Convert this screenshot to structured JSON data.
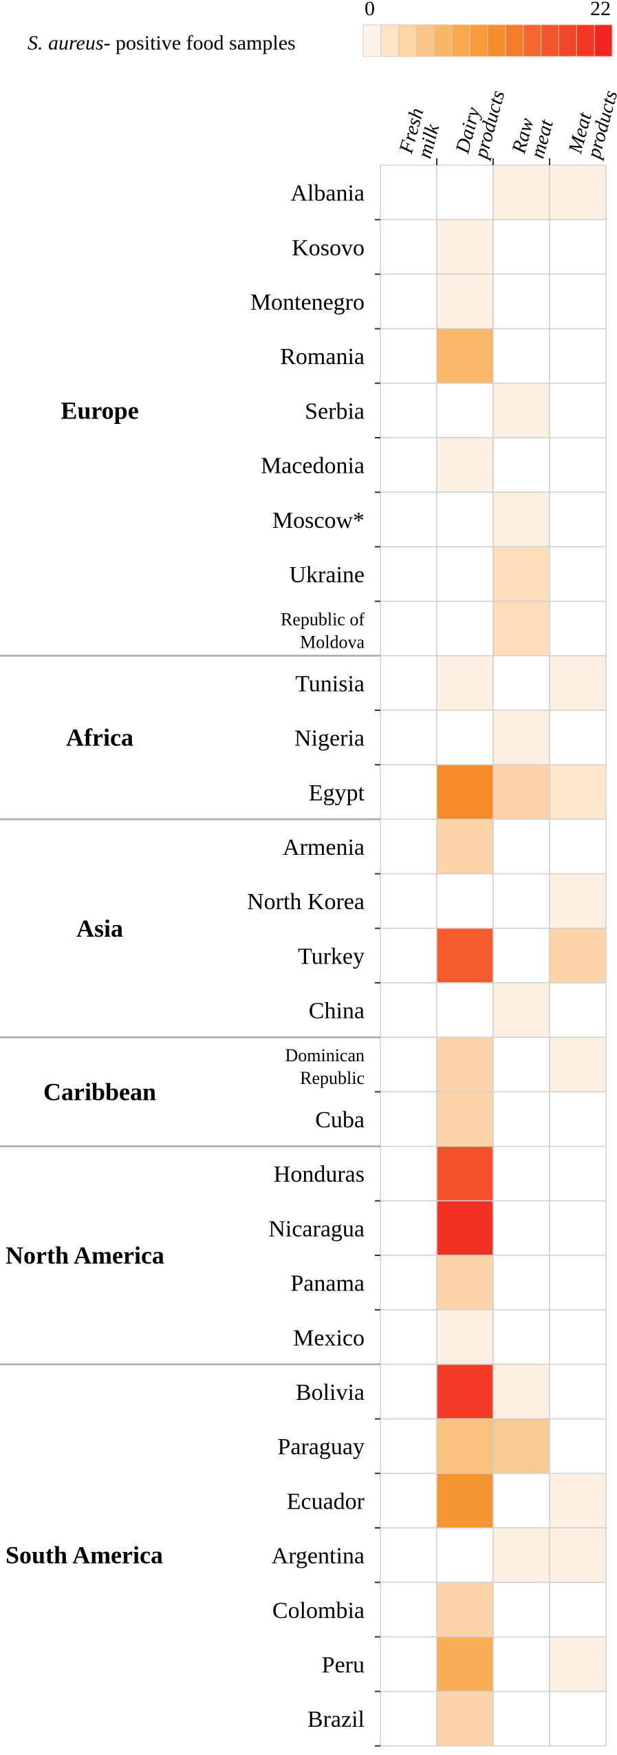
{
  "chart_data": {
    "type": "heatmap",
    "title": "",
    "legend": {
      "title_italic": "S. aureus",
      "title_rest": "- positive food samples",
      "min": 0,
      "max": 22
    },
    "columns": [
      {
        "line1": "Fresh",
        "line2": "milk"
      },
      {
        "line1": "Dairy",
        "line2": "products"
      },
      {
        "line1": "Raw",
        "line2": "meat"
      },
      {
        "line1": "Meat",
        "line2": "products"
      }
    ],
    "rows": [
      {
        "label": "Albania",
        "values": [
          0,
          0,
          1,
          1
        ]
      },
      {
        "label": "Kosovo",
        "values": [
          0,
          1,
          0,
          0
        ]
      },
      {
        "label": "Montenegro",
        "values": [
          0,
          1,
          0,
          0
        ]
      },
      {
        "label": "Romania",
        "values": [
          0,
          7,
          0,
          0
        ]
      },
      {
        "label": "Serbia",
        "values": [
          0,
          0,
          1,
          0
        ]
      },
      {
        "label": "Macedonia",
        "values": [
          0,
          1,
          0,
          0
        ]
      },
      {
        "label": "Moscow*",
        "values": [
          0,
          0,
          1,
          0
        ]
      },
      {
        "label": "Ukraine",
        "values": [
          0,
          0,
          3,
          0
        ]
      },
      {
        "label": "Republic of",
        "label2": "Moldova",
        "values": [
          0,
          0,
          3,
          0
        ]
      },
      {
        "label": "Tunisia",
        "values": [
          0,
          1,
          0,
          1
        ]
      },
      {
        "label": "Nigeria",
        "values": [
          0,
          0,
          1,
          0
        ]
      },
      {
        "label": "Egypt",
        "values": [
          0,
          12,
          4,
          2
        ]
      },
      {
        "label": "Armenia",
        "values": [
          0,
          4,
          0,
          0
        ]
      },
      {
        "label": "North Korea",
        "values": [
          0,
          0,
          0,
          1
        ]
      },
      {
        "label": "Turkey",
        "values": [
          0,
          16,
          0,
          4
        ]
      },
      {
        "label": "China",
        "values": [
          0,
          0,
          1,
          0
        ]
      },
      {
        "label": "Dominican",
        "label2": "Republic",
        "values": [
          0,
          4,
          0,
          1
        ]
      },
      {
        "label": "Cuba",
        "values": [
          0,
          4,
          0,
          0
        ]
      },
      {
        "label": "Honduras",
        "values": [
          0,
          17,
          0,
          0
        ]
      },
      {
        "label": "Nicaragua",
        "values": [
          0,
          20,
          0,
          0
        ]
      },
      {
        "label": "Panama",
        "values": [
          0,
          4,
          0,
          0
        ]
      },
      {
        "label": "Mexico",
        "values": [
          0,
          1,
          0,
          0
        ]
      },
      {
        "label": "Bolivia",
        "values": [
          0,
          19,
          1,
          0
        ]
      },
      {
        "label": "Paraguay",
        "values": [
          0,
          6,
          5,
          0
        ]
      },
      {
        "label": "Ecuador",
        "values": [
          0,
          11,
          0,
          1
        ]
      },
      {
        "label": "Argentina",
        "values": [
          0,
          0,
          1,
          1
        ]
      },
      {
        "label": "Colombia",
        "values": [
          0,
          4,
          0,
          0
        ]
      },
      {
        "label": "Peru",
        "values": [
          0,
          8,
          0,
          1
        ]
      },
      {
        "label": "Brazil",
        "values": [
          0,
          4,
          0,
          0
        ]
      }
    ],
    "regions": [
      {
        "name": "Europe",
        "start": 0,
        "end": 8
      },
      {
        "name": "Africa",
        "start": 9,
        "end": 11
      },
      {
        "name": "Asia",
        "start": 12,
        "end": 15
      },
      {
        "name": "Caribbean",
        "start": 16,
        "end": 17
      },
      {
        "name": "North America",
        "start": 18,
        "end": 21
      },
      {
        "name": "South America",
        "start": 22,
        "end": 28
      }
    ]
  }
}
